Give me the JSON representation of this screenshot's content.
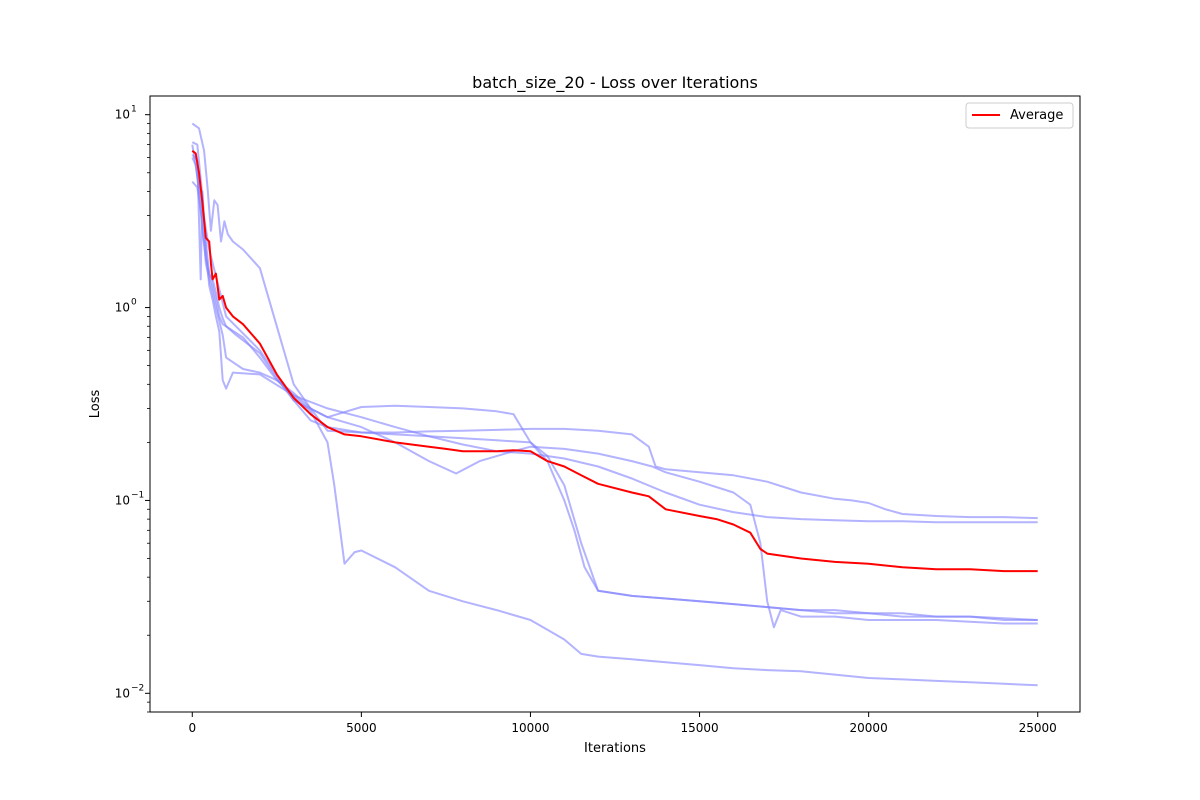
{
  "chart_data": {
    "type": "line",
    "title": "batch_size_20 - Loss over Iterations",
    "xlabel": "Iterations",
    "ylabel": "Loss",
    "yscale": "log",
    "xlim": [
      -1250,
      26250
    ],
    "ylim": [
      0.008,
      12.5
    ],
    "xticks": [
      0,
      5000,
      10000,
      15000,
      20000,
      25000
    ],
    "yticks": [
      {
        "value": 0.01,
        "base": "10",
        "exp": "−2"
      },
      {
        "value": 0.1,
        "base": "10",
        "exp": "−1"
      },
      {
        "value": 1,
        "base": "10",
        "exp": "0"
      },
      {
        "value": 10,
        "base": "10",
        "exp": "1"
      }
    ],
    "grid": false,
    "legend": {
      "position": "top-right",
      "entries": [
        "Average"
      ]
    },
    "colors": {
      "runs": "#8080ff",
      "average": "#ff0000"
    },
    "runs": [
      {
        "x": [
          0,
          150,
          300,
          400,
          500,
          600,
          700,
          800,
          900,
          1000,
          1300,
          2000,
          2500,
          3000,
          3500,
          4000,
          5000,
          6000,
          7000,
          8000,
          9000,
          10000,
          10500,
          11000,
          11500,
          12000,
          13000,
          14000,
          15000,
          16000,
          17000,
          18000,
          19000,
          20000,
          21000,
          22000,
          23000,
          24000,
          25000
        ],
        "y": [
          7.2,
          7.0,
          3.8,
          2.2,
          1.5,
          1.4,
          1.2,
          1.0,
          0.88,
          0.8,
          0.72,
          0.58,
          0.43,
          0.33,
          0.26,
          0.24,
          0.225,
          0.22,
          0.215,
          0.21,
          0.205,
          0.2,
          0.17,
          0.12,
          0.06,
          0.034,
          0.032,
          0.031,
          0.03,
          0.029,
          0.028,
          0.027,
          0.027,
          0.026,
          0.026,
          0.025,
          0.025,
          0.0245,
          0.024
        ]
      },
      {
        "x": [
          0,
          150,
          250,
          300,
          400,
          500,
          600,
          700,
          800,
          900,
          1000,
          1200,
          2000,
          3000,
          4000,
          5000,
          6000,
          7000,
          8000,
          9000,
          10000,
          11000,
          12000,
          13000,
          14000,
          15000,
          16000,
          17000,
          18000,
          19000,
          20000,
          21000,
          22000,
          23000,
          24000,
          25000
        ],
        "y": [
          6.2,
          5.8,
          1.4,
          4.0,
          2.0,
          1.3,
          1.1,
          0.9,
          0.75,
          0.42,
          0.38,
          0.46,
          0.45,
          0.35,
          0.3,
          0.27,
          0.24,
          0.215,
          0.195,
          0.18,
          0.175,
          0.165,
          0.15,
          0.13,
          0.11,
          0.095,
          0.087,
          0.082,
          0.08,
          0.079,
          0.078,
          0.078,
          0.077,
          0.077,
          0.077,
          0.077
        ]
      },
      {
        "x": [
          0,
          100,
          200,
          300,
          400,
          500,
          600,
          700,
          800,
          900,
          1000,
          1500,
          2000,
          2500,
          3000,
          3500,
          4000,
          4200,
          4500,
          4800,
          5000,
          6000,
          7000,
          8000,
          9000,
          10000,
          11000,
          11500,
          12000,
          13000,
          14000,
          15000,
          16000,
          17000,
          18000,
          19000,
          20000,
          21000,
          22000,
          23000,
          24000,
          25000
        ],
        "y": [
          6.0,
          5.5,
          4.0,
          2.5,
          1.8,
          1.5,
          1.3,
          1.1,
          0.9,
          0.82,
          0.8,
          0.7,
          0.55,
          0.42,
          0.35,
          0.29,
          0.2,
          0.12,
          0.047,
          0.054,
          0.055,
          0.045,
          0.034,
          0.03,
          0.027,
          0.024,
          0.019,
          0.016,
          0.0155,
          0.015,
          0.0145,
          0.014,
          0.0135,
          0.0132,
          0.013,
          0.0125,
          0.012,
          0.0118,
          0.0116,
          0.0114,
          0.0112,
          0.011
        ]
      },
      {
        "x": [
          0,
          200,
          350,
          450,
          550,
          650,
          750,
          850,
          950,
          1050,
          1200,
          1500,
          2000,
          2500,
          3000,
          3500,
          4000,
          5000,
          6000,
          7000,
          7800,
          8500,
          9500,
          10000,
          11000,
          12000,
          13000,
          13600,
          14000,
          15000,
          16000,
          16500,
          16800,
          17000,
          17200,
          17400,
          18000,
          19000,
          20000,
          21000,
          22000,
          23000,
          24000,
          25000
        ],
        "y": [
          9.0,
          8.5,
          6.5,
          4.2,
          2.5,
          3.6,
          3.4,
          2.2,
          2.8,
          2.4,
          2.2,
          2.0,
          1.6,
          0.8,
          0.4,
          0.3,
          0.27,
          0.24,
          0.2,
          0.16,
          0.138,
          0.16,
          0.18,
          0.19,
          0.185,
          0.175,
          0.16,
          0.15,
          0.14,
          0.125,
          0.11,
          0.095,
          0.06,
          0.03,
          0.022,
          0.027,
          0.025,
          0.025,
          0.024,
          0.024,
          0.024,
          0.0235,
          0.023,
          0.023
        ]
      },
      {
        "x": [
          0,
          150,
          300,
          400,
          500,
          600,
          700,
          800,
          900,
          1000,
          1500,
          2000,
          2500,
          3000,
          3500,
          4000,
          5000,
          6000,
          7000,
          8000,
          9000,
          10000,
          11000,
          12000,
          13000,
          13500,
          13700,
          14000,
          15000,
          16000,
          17000,
          18000,
          19000,
          19500,
          20000,
          20500,
          21000,
          22000,
          23000,
          24000,
          25000
        ],
        "y": [
          4.5,
          4.2,
          2.8,
          1.7,
          1.4,
          1.2,
          1.0,
          0.85,
          0.72,
          0.55,
          0.48,
          0.46,
          0.42,
          0.36,
          0.3,
          0.23,
          0.225,
          0.225,
          0.228,
          0.23,
          0.232,
          0.235,
          0.235,
          0.23,
          0.22,
          0.19,
          0.15,
          0.145,
          0.14,
          0.135,
          0.125,
          0.11,
          0.102,
          0.1,
          0.097,
          0.09,
          0.085,
          0.083,
          0.082,
          0.082,
          0.081
        ]
      },
      {
        "x": [
          0,
          500,
          1000,
          2000,
          3000,
          4000,
          5000,
          6000,
          7000,
          8000,
          9000,
          9500,
          10000,
          10500,
          11000,
          11300,
          11600,
          12000,
          13000,
          14000,
          15000,
          16000,
          17000,
          18000,
          19000,
          20000,
          21000,
          22000,
          23000,
          24000,
          25000
        ],
        "y": [
          7.0,
          2.0,
          0.9,
          0.6,
          0.33,
          0.27,
          0.305,
          0.31,
          0.305,
          0.3,
          0.29,
          0.28,
          0.2,
          0.16,
          0.1,
          0.07,
          0.045,
          0.034,
          0.032,
          0.031,
          0.03,
          0.029,
          0.028,
          0.027,
          0.026,
          0.026,
          0.025,
          0.025,
          0.025,
          0.024,
          0.024
        ]
      }
    ],
    "series": [
      {
        "name": "Average",
        "x": [
          0,
          100,
          200,
          300,
          400,
          500,
          550,
          600,
          700,
          800,
          900,
          1000,
          1200,
          1500,
          2000,
          2500,
          3000,
          3500,
          4000,
          4500,
          5000,
          6000,
          7000,
          7500,
          8000,
          9000,
          9500,
          10000,
          10500,
          11000,
          11500,
          12000,
          13000,
          13500,
          14000,
          15000,
          15500,
          16000,
          16500,
          16800,
          17000,
          18000,
          19000,
          20000,
          21000,
          22000,
          23000,
          24000,
          25000
        ],
        "y": [
          6.5,
          6.3,
          5.0,
          3.5,
          2.3,
          2.2,
          1.7,
          1.4,
          1.5,
          1.1,
          1.15,
          1.0,
          0.9,
          0.82,
          0.65,
          0.45,
          0.34,
          0.28,
          0.24,
          0.22,
          0.215,
          0.2,
          0.19,
          0.185,
          0.18,
          0.18,
          0.182,
          0.18,
          0.16,
          0.15,
          0.135,
          0.122,
          0.11,
          0.105,
          0.09,
          0.083,
          0.08,
          0.075,
          0.068,
          0.056,
          0.053,
          0.05,
          0.048,
          0.047,
          0.045,
          0.044,
          0.044,
          0.043,
          0.043
        ]
      }
    ]
  }
}
